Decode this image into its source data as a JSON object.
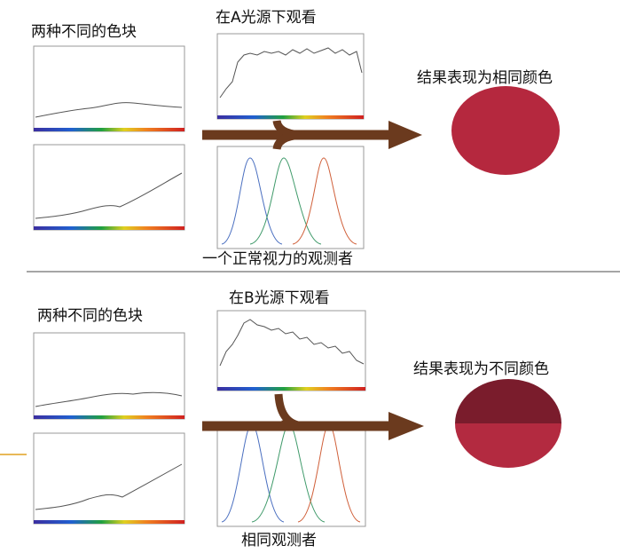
{
  "top": {
    "patches_label": "两种不同的色块",
    "illuminant_label": "在A光源下观看",
    "result_label": "结果表现为相同颜色",
    "observer_label": "一个正常视力的观测者"
  },
  "bottom": {
    "patches_label": "两种不同的色块",
    "illuminant_label": "在B光源下观看",
    "result_label": "结果表现为不同颜色",
    "observer_label": "相同观测者"
  }
}
